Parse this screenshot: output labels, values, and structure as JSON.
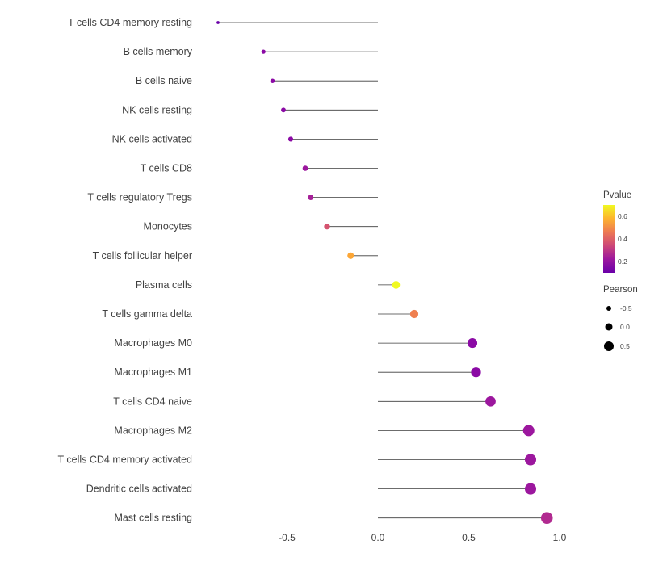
{
  "chart_data": {
    "type": "lollipop",
    "title": "",
    "xlabel": "",
    "ylabel": "",
    "xlim": [
      -0.98,
      1.08
    ],
    "x_ticks": [
      -0.5,
      0.0,
      0.5,
      1.0
    ],
    "x_tick_labels": [
      "-0.5",
      "0.0",
      "0.5",
      "1.0"
    ],
    "grid": false,
    "categories": [
      "T cells CD4 memory resting",
      "B cells memory",
      "B cells naive",
      "NK cells resting",
      "NK cells activated",
      "T cells CD8",
      "T cells regulatory  Tregs",
      "Monocytes",
      "T cells follicular helper",
      "Plasma cells",
      "T cells gamma delta",
      "Macrophages M0",
      "Macrophages M1",
      "T cells CD4 naive",
      "Macrophages M2",
      "T cells CD4 memory activated",
      "Dendritic cells activated",
      "Mast cells resting"
    ],
    "series": [
      {
        "name": "Pearson",
        "values": [
          -0.88,
          -0.63,
          -0.58,
          -0.52,
          -0.48,
          -0.4,
          -0.37,
          -0.28,
          -0.15,
          0.1,
          0.2,
          0.52,
          0.54,
          0.62,
          0.83,
          0.84,
          0.84,
          0.93
        ]
      },
      {
        "name": "Pvalue-color",
        "colors": [
          "#6a00a8",
          "#8b0aa5",
          "#8b0aa5",
          "#8b0aa5",
          "#8b0aa5",
          "#9c179e",
          "#a62098",
          "#d5536f",
          "#fca636",
          "#f0f921",
          "#ef7f4f",
          "#8b0aa5",
          "#8b0aa5",
          "#9c179e",
          "#9c179e",
          "#9c179e",
          "#9c179e",
          "#b12a90"
        ]
      }
    ],
    "stem_color": "#3c3c3c",
    "legend": {
      "position": "right",
      "pvalue": {
        "title": "Pvalue",
        "tick_labels": [
          "0.6",
          "0.4",
          "0.2"
        ],
        "gradient": [
          "#f0f921",
          "#fdb32f",
          "#ed7953",
          "#cc4778",
          "#9c179e",
          "#6a00a8"
        ]
      },
      "pearson": {
        "title": "Pearson",
        "tick_labels": [
          "-0.5",
          "0.0",
          "0.5"
        ],
        "tick_values": [
          -0.5,
          0.0,
          0.5
        ],
        "dot_color": "#000000"
      }
    },
    "size_mapping": {
      "base_radius": 4.5,
      "radius_per_unit": 3.0,
      "min_radius": 1.6
    }
  },
  "layout_labels": {
    "note": ""
  }
}
